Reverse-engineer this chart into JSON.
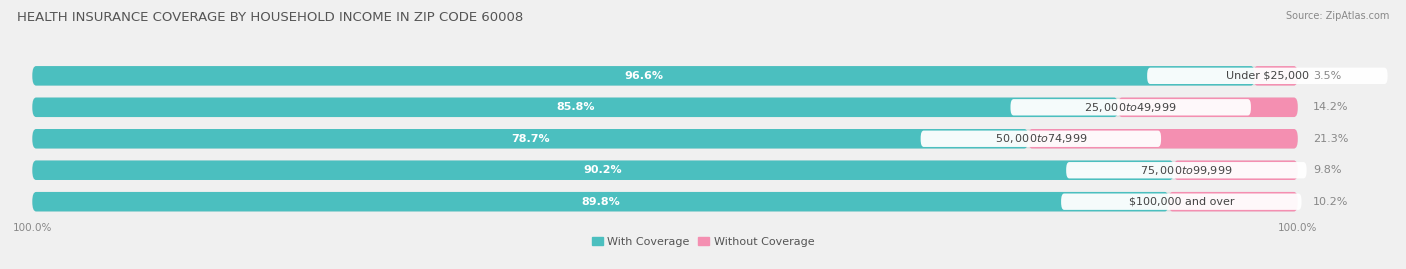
{
  "title": "HEALTH INSURANCE COVERAGE BY HOUSEHOLD INCOME IN ZIP CODE 60008",
  "source": "Source: ZipAtlas.com",
  "categories": [
    "Under $25,000",
    "$25,000 to $49,999",
    "$50,000 to $74,999",
    "$75,000 to $99,999",
    "$100,000 and over"
  ],
  "with_coverage": [
    96.6,
    85.8,
    78.7,
    90.2,
    89.8
  ],
  "without_coverage": [
    3.5,
    14.2,
    21.3,
    9.8,
    10.2
  ],
  "color_with": "#4bbfbf",
  "color_without": "#f48fb1",
  "bg_color": "#f0f0f0",
  "bar_bg_color": "#e0e0e0",
  "title_fontsize": 9.5,
  "label_fontsize": 8.0,
  "tick_fontsize": 7.5,
  "legend_fontsize": 8.0,
  "x_left_label": "100.0%",
  "x_right_label": "100.0%"
}
